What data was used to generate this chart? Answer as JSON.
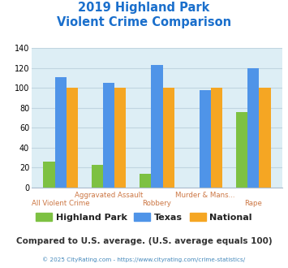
{
  "title_line1": "2019 Highland Park",
  "title_line2": "Violent Crime Comparison",
  "series": {
    "Highland Park": [
      26,
      23,
      14,
      0,
      76
    ],
    "Texas": [
      111,
      105,
      123,
      98,
      120
    ],
    "National": [
      100,
      100,
      100,
      100,
      100
    ]
  },
  "colors": {
    "Highland Park": "#7dc142",
    "Texas": "#4f94e8",
    "National": "#f5a623"
  },
  "top_labels": [
    "",
    "Aggravated Assault",
    "",
    "Murder & Mans...",
    ""
  ],
  "bot_labels": [
    "All Violent Crime",
    "",
    "Robbery",
    "",
    "Rape"
  ],
  "ylim": [
    0,
    140
  ],
  "yticks": [
    0,
    20,
    40,
    60,
    80,
    100,
    120,
    140
  ],
  "plot_area_color": "#ddeef5",
  "title_color": "#1a6fcc",
  "xtick_color": "#cc7744",
  "footer_text": "Compared to U.S. average. (U.S. average equals 100)",
  "footer_color": "#333333",
  "credit_text": "© 2025 CityRating.com - https://www.cityrating.com/crime-statistics/",
  "credit_color": "#4488bb",
  "grid_color": "#c0d5e0",
  "legend_text_color": "#222222"
}
